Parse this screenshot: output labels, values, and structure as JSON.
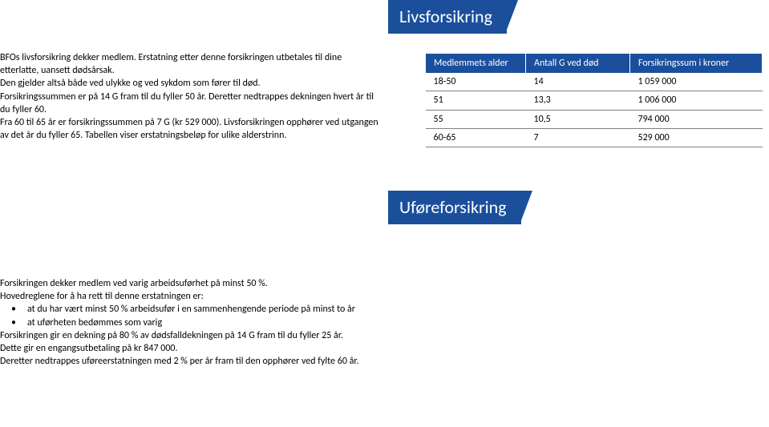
{
  "headings": {
    "h1": "Livsforsikring",
    "h2": "Uføreforsikring"
  },
  "section1": {
    "p1": "BFOs livsforsikring dekker medlem. Erstatning etter denne forsikringen utbetales til dine etterlatte, uansett dødsårsak.",
    "p2": "Den gjelder altså både ved ulykke og ved sykdom som fører til død.",
    "p3": "Forsikringssummen er på 14 G fram til du fyller 50 år. Deretter nedtrappes dekningen hvert år til du fyller 60.",
    "p4": "Fra 60 til 65 år er forsikringssummen på 7 G (kr 529 000). Livsforsikringen opphører ved utgangen av det år du fyller 65. Tabellen viser erstatningsbeløp for ulike alderstrinn."
  },
  "table": {
    "headers": {
      "age": "Medlemmets alder",
      "g": "Antall G ved død",
      "sum": "Forsikringssum i kroner"
    },
    "rows": [
      {
        "age": "18-50",
        "g": "14",
        "sum": "1 059 000"
      },
      {
        "age": "51",
        "g": "13,3",
        "sum": "1 006 000"
      },
      {
        "age": "55",
        "g": "10,5",
        "sum": "794 000"
      },
      {
        "age": "60-65",
        "g": "7",
        "sum": "529 000"
      }
    ]
  },
  "section2": {
    "p1": "Forsikringen dekker medlem ved varig arbeidsuførhet på minst 50 %.",
    "p2": "Hovedreglene for å ha rett til denne erstatningen er:",
    "b1": "at du har vært minst 50 % arbeidsufør i en sammenhengende periode på minst to år",
    "b2": "at uførheten bedømmes som varig",
    "p3": "Forsikringen gir en dekning på 80 % av dødsfalldekningen på 14 G fram til du fyller 25 år.",
    "p4": "Dette gir en engangsutbetaling på kr 847 000.",
    "p5": "Deretter nedtrappes uføreerstatningen med 2 % per år fram til den opphører ved fylte 60 år."
  },
  "colors": {
    "brand": "#1b4f9c",
    "text": "#000000",
    "rule": "#808080",
    "bg": "#ffffff"
  }
}
